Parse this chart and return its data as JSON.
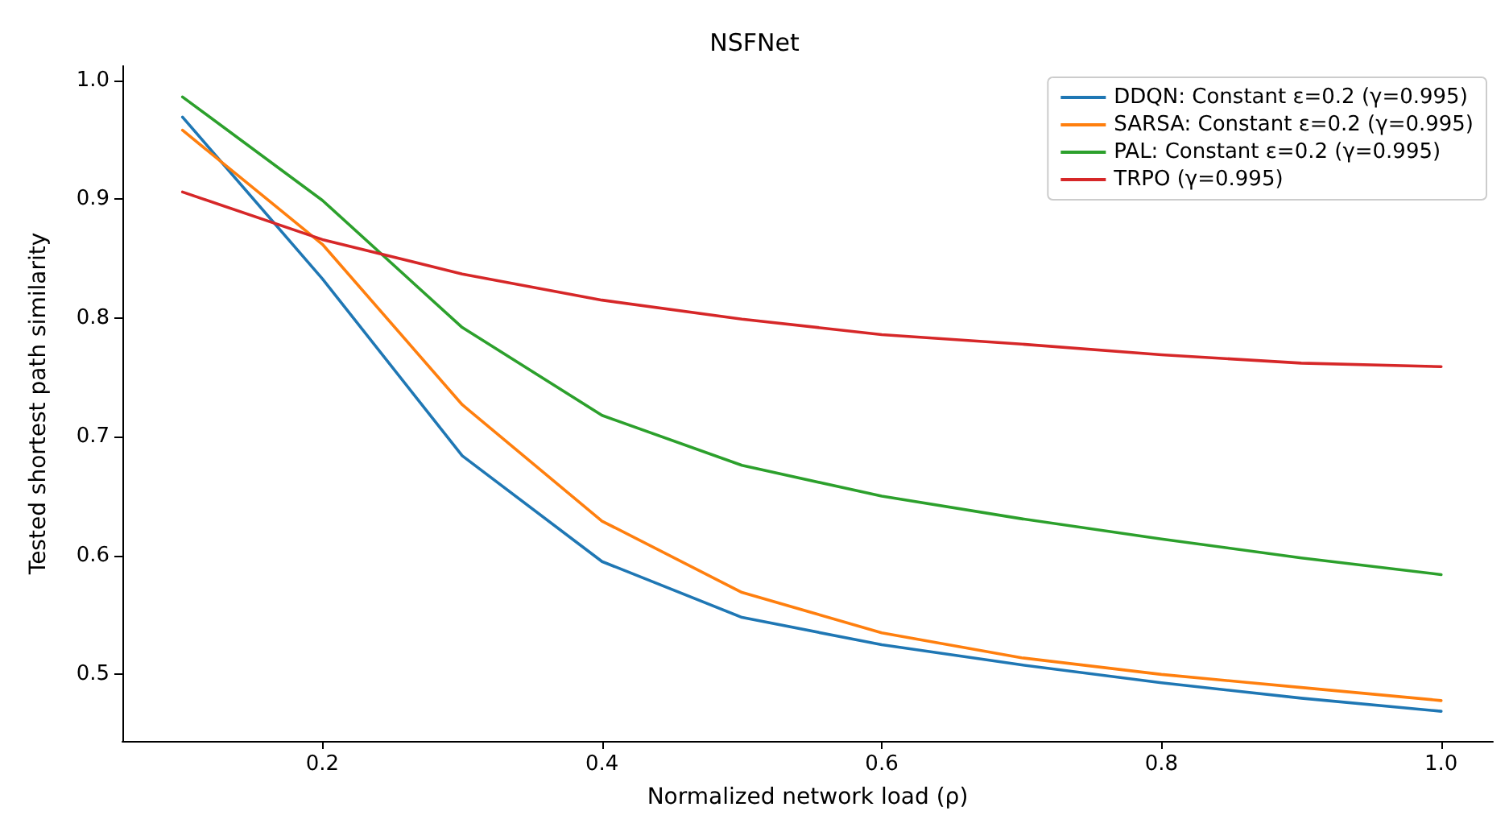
{
  "chart_data": {
    "type": "line",
    "title": "NSFNet",
    "xlabel": "Normalized network load (ρ)",
    "ylabel": "Tested shortest path similarity",
    "x": [
      0.1,
      0.2,
      0.3,
      0.4,
      0.5,
      0.6,
      0.7,
      0.8,
      0.9,
      1.0
    ],
    "series": [
      {
        "name": "DDQN: Constant ε=0.2 (γ=0.995)",
        "color": "#1f77b4",
        "values": [
          0.969,
          0.833,
          0.684,
          0.595,
          0.548,
          0.525,
          0.508,
          0.493,
          0.48,
          0.469
        ]
      },
      {
        "name": "SARSA: Constant ε=0.2 (γ=0.995)",
        "color": "#ff7f0e",
        "values": [
          0.958,
          0.862,
          0.727,
          0.629,
          0.569,
          0.535,
          0.514,
          0.5,
          0.489,
          0.478
        ]
      },
      {
        "name": "PAL: Constant ε=0.2 (γ=0.995)",
        "color": "#2ca02c",
        "values": [
          0.986,
          0.899,
          0.792,
          0.718,
          0.676,
          0.65,
          0.631,
          0.614,
          0.598,
          0.584
        ]
      },
      {
        "name": "TRPO (γ=0.995)",
        "color": "#d62728",
        "values": [
          0.906,
          0.866,
          0.837,
          0.815,
          0.799,
          0.786,
          0.778,
          0.769,
          0.762,
          0.759
        ]
      }
    ],
    "xlim": [
      0.057,
      1.037
    ],
    "ylim": [
      0.444,
      1.012
    ],
    "xticks": [
      0.2,
      0.4,
      0.6,
      0.8,
      {
        "value": 1.0,
        "label": "1.0"
      }
    ],
    "yticks": [
      0.5,
      0.6,
      0.7,
      0.8,
      0.9,
      {
        "value": 1.0,
        "label": "1.0"
      }
    ],
    "grid": false,
    "legend": "top right",
    "marker": "none",
    "line_style": "solid"
  }
}
